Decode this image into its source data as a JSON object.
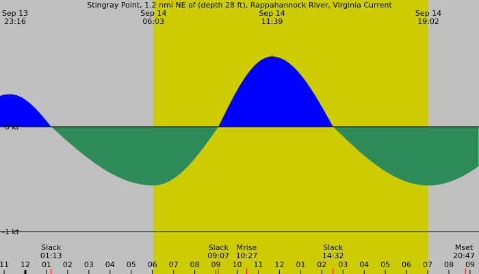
{
  "chart_data": {
    "type": "area",
    "title": "Stingray Point, 1.2 nmi NE of (depth 28 ft), Rappahannock River, Virginia Current",
    "ylabel_ticks": [
      {
        "label": "0 kt",
        "value": 0
      },
      {
        "label": "-1 kt",
        "value": -1
      }
    ],
    "ylim": [
      -1,
      0.67
    ],
    "xlim_hours": [
      -1.2,
      21.4
    ],
    "day_band": {
      "start_hour": 6.05,
      "end_hour": 19.03
    },
    "colors": {
      "night": "#c0c0c0",
      "day": "#cccc00",
      "flood": "#0000ff",
      "ebb": "#2e8b57",
      "axis": "#000000",
      "midnight_tick": "#000000",
      "event_tick": "#ff0000"
    },
    "top_labels": [
      {
        "date": "Sep 13",
        "time": "23:16",
        "hour": -0.73
      },
      {
        "date": "Sep 14",
        "time": "06:03",
        "hour": 6.05
      },
      {
        "date": "Sep 14",
        "time": "11:39",
        "hour": 11.65
      },
      {
        "date": "Sep 14",
        "time": "19:02",
        "hour": 19.03
      }
    ],
    "events": [
      {
        "name": "Slack",
        "time": "01:13",
        "hour": 1.22
      },
      {
        "name": "Slack",
        "time": "09:07",
        "hour": 9.12
      },
      {
        "name": "Mrise",
        "time": "10:27",
        "hour": 10.45
      },
      {
        "name": "Slack",
        "time": "14:32",
        "hour": 14.53
      },
      {
        "name": "Mset",
        "time": "20:47",
        "hour": 20.78
      }
    ],
    "extrema": [
      {
        "time": "23:16",
        "hour": -0.73,
        "value": 0.31
      },
      {
        "time": "06:03",
        "hour": 6.05,
        "value": -0.56
      },
      {
        "time": "11:39",
        "hour": 11.65,
        "value": 0.67
      },
      {
        "time": "19:02",
        "hour": 19.03,
        "value": -0.56
      }
    ],
    "peak_marker": {
      "symbol": "+",
      "hour": 11.65,
      "value": 0.67
    },
    "hour_ticks": [
      {
        "label": "11",
        "hour": -1
      },
      {
        "label": "12",
        "hour": 0,
        "midnight": true
      },
      {
        "label": "01",
        "hour": 1
      },
      {
        "label": "02",
        "hour": 2
      },
      {
        "label": "03",
        "hour": 3
      },
      {
        "label": "04",
        "hour": 4
      },
      {
        "label": "05",
        "hour": 5
      },
      {
        "label": "06",
        "hour": 6
      },
      {
        "label": "07",
        "hour": 7
      },
      {
        "label": "08",
        "hour": 8
      },
      {
        "label": "09",
        "hour": 9
      },
      {
        "label": "10",
        "hour": 10
      },
      {
        "label": "11",
        "hour": 11
      },
      {
        "label": "12",
        "hour": 12
      },
      {
        "label": "01",
        "hour": 13
      },
      {
        "label": "02",
        "hour": 14
      },
      {
        "label": "03",
        "hour": 15
      },
      {
        "label": "04",
        "hour": 16
      },
      {
        "label": "05",
        "hour": 17
      },
      {
        "label": "06",
        "hour": 18
      },
      {
        "label": "07",
        "hour": 19
      },
      {
        "label": "08",
        "hour": 20
      },
      {
        "label": "09",
        "hour": 21
      }
    ]
  }
}
